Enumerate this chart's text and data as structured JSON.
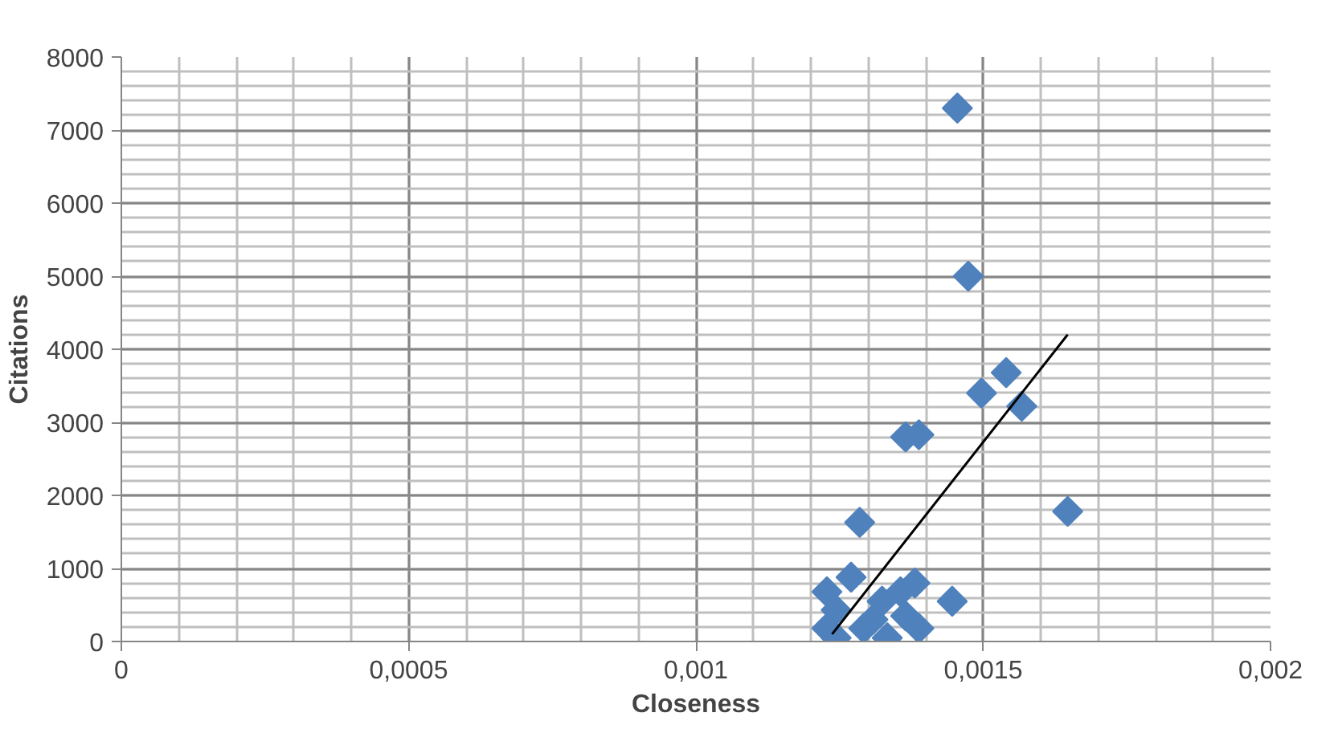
{
  "chart_data": {
    "type": "scatter",
    "xlabel": "Closeness",
    "ylabel": "Citations",
    "xlim": [
      0,
      0.002
    ],
    "ylim": [
      0,
      8000
    ],
    "xticks": [
      0,
      {
        "value": 0.0005,
        "label": "0,0005"
      },
      {
        "value": 0.001,
        "label": "0,001"
      },
      {
        "value": 0.0015,
        "label": "0,0015"
      },
      {
        "value": 0.002,
        "label": "0,002"
      }
    ],
    "yticks": [
      0,
      1000,
      2000,
      3000,
      4000,
      5000,
      6000,
      7000,
      8000
    ],
    "grid": true,
    "series": [
      {
        "marker": "diamond",
        "color": "#4f81bd",
        "x": [
          0.001455,
          0.001474,
          0.00154,
          0.001497,
          0.001567,
          0.001388,
          0.001365,
          0.001647,
          0.001285,
          0.001446,
          0.001228,
          0.001244,
          0.001228,
          0.001244,
          0.001292,
          0.001324,
          0.001356,
          0.001381,
          0.001365,
          0.001388,
          0.001333,
          0.00127,
          0.001308
        ],
        "values": [
          7300,
          5000,
          3680,
          3400,
          3220,
          2830,
          2800,
          1780,
          1630,
          550,
          680,
          430,
          180,
          50,
          180,
          550,
          680,
          800,
          350,
          180,
          50,
          880,
          300
        ]
      },
      {
        "type": "line",
        "color": "#000000",
        "x": [
          0.001237,
          0.001647
        ],
        "values": [
          100,
          4200
        ]
      }
    ]
  }
}
